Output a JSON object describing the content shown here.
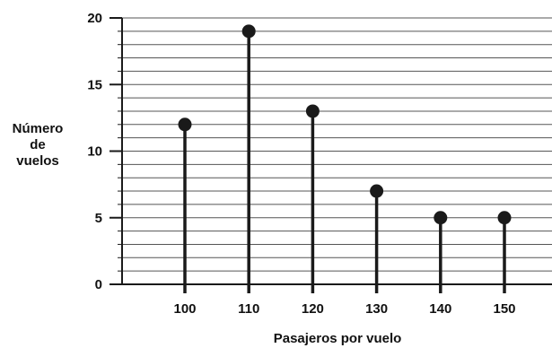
{
  "chart_data": {
    "type": "scatter",
    "style": "lollipop",
    "x": [
      100,
      110,
      120,
      130,
      140,
      150
    ],
    "values": [
      12,
      19,
      13,
      7,
      5,
      5
    ],
    "xlabel": "Pasajeros por vuelo",
    "ylabel_lines": [
      "Número",
      "de",
      "vuelos"
    ],
    "ylim": [
      0,
      20
    ],
    "y_ticks": [
      0,
      5,
      10,
      15,
      20
    ],
    "x_ticks": [
      100,
      110,
      120,
      130,
      140,
      150
    ],
    "grid": true,
    "color": "#1a1a1a"
  }
}
